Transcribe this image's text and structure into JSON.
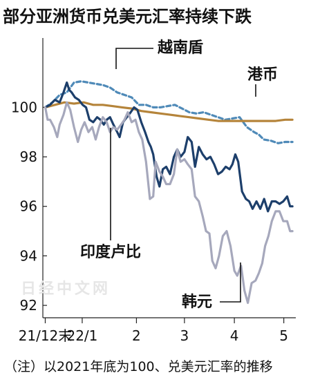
{
  "page": {
    "title": "部分亚洲货币兑美元汇率持续下跌"
  },
  "note": "（注）以2021年底为100、兑美元汇率的推移",
  "watermark": "日经中文网",
  "chart_data": {
    "type": "line",
    "title": "部分亚洲货币兑美元汇率持续下跌",
    "xlabel": "",
    "ylabel": "",
    "x_ticks": [
      "21/12末",
      "22/1",
      "2",
      "3",
      "4",
      "5"
    ],
    "x_tick_positions": [
      0,
      0.77,
      1.9,
      2.9,
      3.94,
      4.97
    ],
    "ylim": [
      91.5,
      102.8
    ],
    "xlim": [
      -0.05,
      5.22
    ],
    "yticks": [
      92,
      94,
      96,
      98,
      100
    ],
    "grid": false,
    "series": [
      {
        "name": "越南盾",
        "color": "#4f8ab8",
        "style": "dashed",
        "points": [
          [
            0,
            100
          ],
          [
            0.15,
            100.2
          ],
          [
            0.3,
            100.5
          ],
          [
            0.45,
            100.6
          ],
          [
            0.6,
            101
          ],
          [
            0.75,
            101.05
          ],
          [
            0.9,
            101
          ],
          [
            1.05,
            100.95
          ],
          [
            1.2,
            100.9
          ],
          [
            1.35,
            100.8
          ],
          [
            1.5,
            100.6
          ],
          [
            1.65,
            100.5
          ],
          [
            1.8,
            100.4
          ],
          [
            1.95,
            100.1
          ],
          [
            2.1,
            100.1
          ],
          [
            2.25,
            100
          ],
          [
            2.4,
            100
          ],
          [
            2.55,
            100.05
          ],
          [
            2.7,
            100.1
          ],
          [
            2.85,
            99.95
          ],
          [
            3.0,
            99.8
          ],
          [
            3.15,
            99.75
          ],
          [
            3.3,
            99.8
          ],
          [
            3.45,
            99.7
          ],
          [
            3.6,
            99.6
          ],
          [
            3.75,
            99.5
          ],
          [
            3.9,
            99.55
          ],
          [
            4.05,
            99.6
          ],
          [
            4.2,
            99.2
          ],
          [
            4.35,
            99.0
          ],
          [
            4.45,
            98.9
          ],
          [
            4.55,
            98.7
          ],
          [
            4.7,
            98.65
          ],
          [
            4.85,
            98.55
          ],
          [
            5.0,
            98.6
          ],
          [
            5.15,
            98.6
          ]
        ]
      },
      {
        "name": "港币",
        "color": "#b5843a",
        "style": "solid",
        "points": [
          [
            0,
            100
          ],
          [
            0.2,
            100.1
          ],
          [
            0.4,
            100.2
          ],
          [
            0.6,
            100.15
          ],
          [
            0.8,
            100.2
          ],
          [
            1.0,
            100.1
          ],
          [
            1.2,
            100.1
          ],
          [
            1.4,
            100.05
          ],
          [
            1.6,
            100
          ],
          [
            1.8,
            99.95
          ],
          [
            2.0,
            99.85
          ],
          [
            2.2,
            99.8
          ],
          [
            2.4,
            99.75
          ],
          [
            2.6,
            99.7
          ],
          [
            2.8,
            99.65
          ],
          [
            3.0,
            99.6
          ],
          [
            3.2,
            99.55
          ],
          [
            3.4,
            99.5
          ],
          [
            3.6,
            99.45
          ],
          [
            3.8,
            99.45
          ],
          [
            4.0,
            99.45
          ],
          [
            4.2,
            99.45
          ],
          [
            4.4,
            99.45
          ],
          [
            4.6,
            99.45
          ],
          [
            4.8,
            99.45
          ],
          [
            5.0,
            99.5
          ],
          [
            5.15,
            99.5
          ]
        ]
      },
      {
        "name": "印度卢比",
        "color": "#1d3f6b",
        "style": "solid",
        "points": [
          [
            0,
            100
          ],
          [
            0.1,
            100.1
          ],
          [
            0.2,
            100.3
          ],
          [
            0.3,
            100.2
          ],
          [
            0.38,
            100.6
          ],
          [
            0.45,
            101
          ],
          [
            0.5,
            100.7
          ],
          [
            0.55,
            100.6
          ],
          [
            0.62,
            100.4
          ],
          [
            0.7,
            100.3
          ],
          [
            0.78,
            100.1
          ],
          [
            0.85,
            100
          ],
          [
            0.92,
            99.5
          ],
          [
            1.0,
            99.4
          ],
          [
            1.08,
            99.6
          ],
          [
            1.15,
            99.5
          ],
          [
            1.22,
            99.3
          ],
          [
            1.28,
            99.5
          ],
          [
            1.35,
            99.6
          ],
          [
            1.42,
            99.3
          ],
          [
            1.5,
            99.0
          ],
          [
            1.55,
            98.8
          ],
          [
            1.62,
            99.4
          ],
          [
            1.7,
            99.6
          ],
          [
            1.78,
            99.8
          ],
          [
            1.85,
            100
          ],
          [
            1.92,
            99.9
          ],
          [
            2.0,
            99.4
          ],
          [
            2.08,
            99.0
          ],
          [
            2.15,
            98.6
          ],
          [
            2.2,
            98.4
          ],
          [
            2.25,
            98.1
          ],
          [
            2.32,
            97.2
          ],
          [
            2.38,
            96.8
          ],
          [
            2.45,
            97.5
          ],
          [
            2.52,
            97.6
          ],
          [
            2.6,
            97.3
          ],
          [
            2.68,
            98.0
          ],
          [
            2.75,
            98.3
          ],
          [
            2.82,
            98.0
          ],
          [
            2.9,
            98.2
          ],
          [
            2.97,
            98.8
          ],
          [
            3.05,
            98.6
          ],
          [
            3.12,
            97.6
          ],
          [
            3.2,
            98.4
          ],
          [
            3.28,
            98.1
          ],
          [
            3.36,
            97.9
          ],
          [
            3.44,
            98.0
          ],
          [
            3.52,
            97.7
          ],
          [
            3.6,
            97.3
          ],
          [
            3.68,
            97.4
          ],
          [
            3.76,
            97.6
          ],
          [
            3.84,
            97.5
          ],
          [
            3.9,
            97.7
          ],
          [
            3.96,
            98.1
          ],
          [
            4.02,
            97.8
          ],
          [
            4.1,
            96.6
          ],
          [
            4.18,
            96.3
          ],
          [
            4.25,
            96.2
          ],
          [
            4.32,
            95.9
          ],
          [
            4.4,
            96.2
          ],
          [
            4.48,
            95.9
          ],
          [
            4.56,
            96.3
          ],
          [
            4.64,
            95.8
          ],
          [
            4.72,
            96.2
          ],
          [
            4.8,
            96.2
          ],
          [
            4.88,
            96.1
          ],
          [
            4.96,
            96.2
          ],
          [
            5.04,
            96.4
          ],
          [
            5.1,
            96.0
          ],
          [
            5.15,
            96.0
          ]
        ]
      },
      {
        "name": "韩元",
        "color": "#a6a8bc",
        "style": "solid",
        "points": [
          [
            0,
            100
          ],
          [
            0.05,
            99.5
          ],
          [
            0.1,
            99.5
          ],
          [
            0.18,
            99.2
          ],
          [
            0.25,
            98.8
          ],
          [
            0.3,
            99.3
          ],
          [
            0.38,
            99.7
          ],
          [
            0.45,
            100.2
          ],
          [
            0.52,
            99.9
          ],
          [
            0.6,
            99.2
          ],
          [
            0.68,
            98.6
          ],
          [
            0.75,
            99.1
          ],
          [
            0.82,
            99.4
          ],
          [
            0.9,
            99.0
          ],
          [
            0.98,
            99.2
          ],
          [
            1.05,
            98.7
          ],
          [
            1.12,
            99.2
          ],
          [
            1.2,
            99.6
          ],
          [
            1.28,
            99.4
          ],
          [
            1.35,
            99.0
          ],
          [
            1.42,
            99.2
          ],
          [
            1.5,
            99.1
          ],
          [
            1.58,
            99.3
          ],
          [
            1.65,
            99.5
          ],
          [
            1.72,
            99.8
          ],
          [
            1.8,
            99.4
          ],
          [
            1.88,
            99.5
          ],
          [
            1.95,
            99.0
          ],
          [
            2.02,
            98.7
          ],
          [
            2.1,
            97.8
          ],
          [
            2.18,
            96.3
          ],
          [
            2.25,
            96.4
          ],
          [
            2.3,
            97.8
          ],
          [
            2.38,
            97.4
          ],
          [
            2.45,
            97.2
          ],
          [
            2.52,
            96.9
          ],
          [
            2.6,
            96.9
          ],
          [
            2.68,
            97.3
          ],
          [
            2.75,
            98.3
          ],
          [
            2.82,
            97.8
          ],
          [
            2.9,
            97.9
          ],
          [
            2.97,
            97.7
          ],
          [
            3.05,
            97.5
          ],
          [
            3.12,
            96.4
          ],
          [
            3.2,
            96.2
          ],
          [
            3.28,
            95.6
          ],
          [
            3.35,
            95.0
          ],
          [
            3.42,
            94.9
          ],
          [
            3.48,
            93.8
          ],
          [
            3.55,
            93.5
          ],
          [
            3.62,
            94.0
          ],
          [
            3.7,
            94.8
          ],
          [
            3.78,
            95.0
          ],
          [
            3.86,
            94.4
          ],
          [
            3.94,
            93.4
          ],
          [
            4.0,
            93.2
          ],
          [
            4.08,
            93.6
          ],
          [
            4.15,
            92.6
          ],
          [
            4.22,
            92.1
          ],
          [
            4.3,
            92.9
          ],
          [
            4.38,
            93.0
          ],
          [
            4.45,
            93.3
          ],
          [
            4.52,
            93.7
          ],
          [
            4.58,
            94.4
          ],
          [
            4.65,
            94.8
          ],
          [
            4.72,
            95.4
          ],
          [
            4.8,
            95.8
          ],
          [
            4.88,
            95.8
          ],
          [
            4.96,
            95.4
          ],
          [
            5.04,
            95.4
          ],
          [
            5.1,
            95.0
          ],
          [
            5.15,
            95.0
          ]
        ]
      }
    ],
    "labels": [
      {
        "text": "越南盾",
        "series": "越南盾"
      },
      {
        "text": "港币",
        "series": "港币"
      },
      {
        "text": "印度卢比",
        "series": "印度卢比"
      },
      {
        "text": "韩元",
        "series": "韩元"
      }
    ]
  }
}
